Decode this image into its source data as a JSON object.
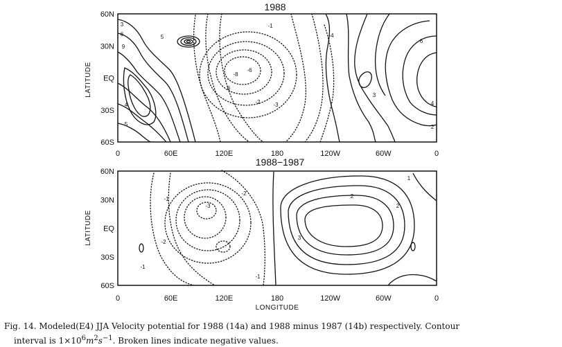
{
  "chart_data": [
    {
      "type": "contour",
      "title": "1988",
      "ylabel": "LATITUDE",
      "xlabel": "",
      "x_tick_labels": [
        "0",
        "60E",
        "120E",
        "180",
        "120W",
        "60W",
        "0"
      ],
      "y_tick_labels": [
        "60N",
        "30N",
        "EQ",
        "30S",
        "60S"
      ],
      "xlim": [
        0,
        360
      ],
      "ylim": [
        -60,
        60
      ],
      "contour_labels": [
        "3",
        "6",
        "9",
        "5",
        "-1",
        "-4",
        "-6",
        "-8",
        "-2",
        "-3",
        "6",
        "4",
        "5",
        "3",
        "6",
        "4",
        "2"
      ]
    },
    {
      "type": "contour",
      "title": "1988−1987",
      "ylabel": "LATITUDE",
      "xlabel": "LONGITUDE",
      "x_tick_labels": [
        "0",
        "60E",
        "120E",
        "180",
        "120W",
        "60W",
        "0"
      ],
      "y_tick_labels": [
        "60N",
        "30N",
        "EQ",
        "30S",
        "60S"
      ],
      "xlim": [
        0,
        360
      ],
      "ylim": [
        -60,
        60
      ],
      "contour_labels": [
        "-1",
        "-1",
        "-2",
        "-3",
        "-2",
        "-1",
        "2",
        "3",
        "2",
        "1"
      ]
    }
  ],
  "caption": {
    "line1": "Fig. 14. Modeled(E4) JJA Velocity potential for 1988 (14a) and 1988 minus 1987 (14b) respectively. Contour",
    "line2_prefix": "interval is 1×10",
    "line2_sup1": "6",
    "line2_m": "m",
    "line2_sup2": "2",
    "line2_s": "s",
    "line2_sup3": "−1",
    "line2_suffix": ". Broken lines indicate negative values."
  }
}
